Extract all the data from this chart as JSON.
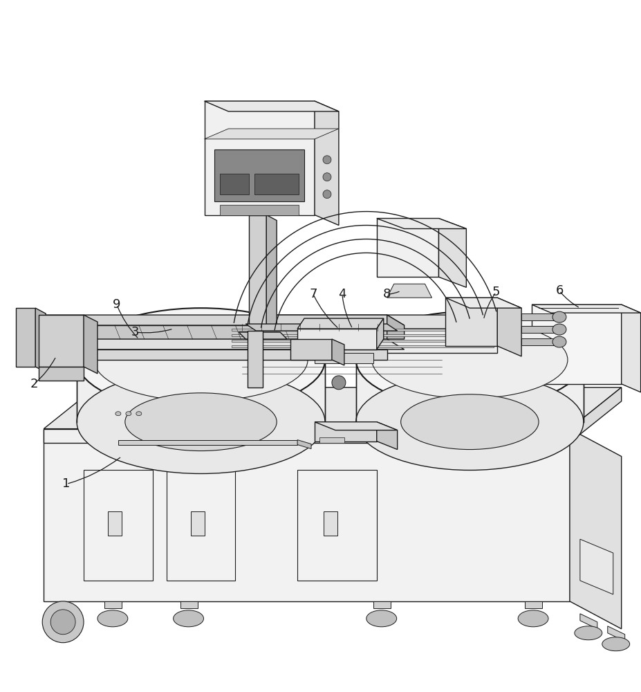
{
  "bg_color": "#ffffff",
  "lc": "#1a1a1a",
  "lw": 1.0,
  "tlw": 0.6,
  "fig_width": 9.28,
  "fig_height": 10.0,
  "dpi": 100
}
